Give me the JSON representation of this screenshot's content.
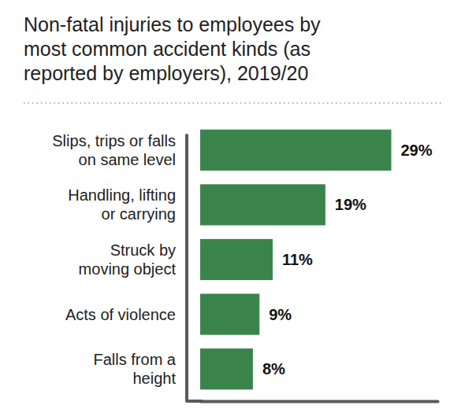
{
  "chart_data": {
    "type": "bar",
    "orientation": "horizontal",
    "title": "Non-fatal injuries to employees by\nmost common accident kinds (as\nreported by employers), 2019/20",
    "categories": [
      "Slips, trips or falls\non same level",
      "Handling, lifting\nor carrying",
      "Struck by\nmoving object",
      "Acts of violence",
      "Falls from a\nheight"
    ],
    "values": [
      29,
      19,
      11,
      9,
      8
    ],
    "value_labels": [
      "29%",
      "19%",
      "11%",
      "9%",
      "8%"
    ],
    "data_labels": true,
    "color": "#3a844c",
    "xlim": [
      0,
      36
    ],
    "tick_labels": "y"
  }
}
